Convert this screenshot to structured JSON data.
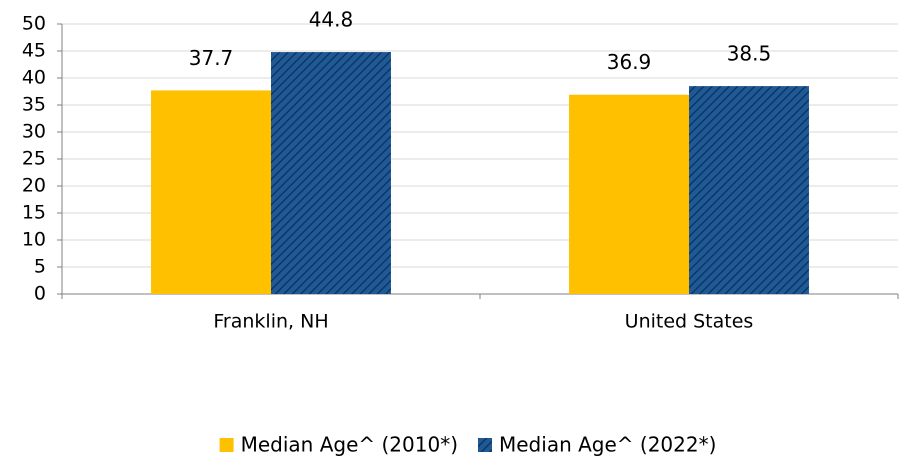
{
  "chart_data": {
    "type": "bar",
    "categories": [
      "Franklin, NH",
      "United States"
    ],
    "series": [
      {
        "name": "Median Age^ (2010*)",
        "color": "#ffc000",
        "values": [
          37.7,
          36.9
        ]
      },
      {
        "name": "Median Age^ (2022*)",
        "color": "#1f5a96",
        "pattern": "hatch",
        "values": [
          44.8,
          38.5
        ]
      }
    ],
    "ylim": [
      0,
      50
    ],
    "yticks": [
      0,
      5,
      10,
      15,
      20,
      25,
      30,
      35,
      40,
      45,
      50
    ],
    "grid": true,
    "legend": "bottom"
  }
}
